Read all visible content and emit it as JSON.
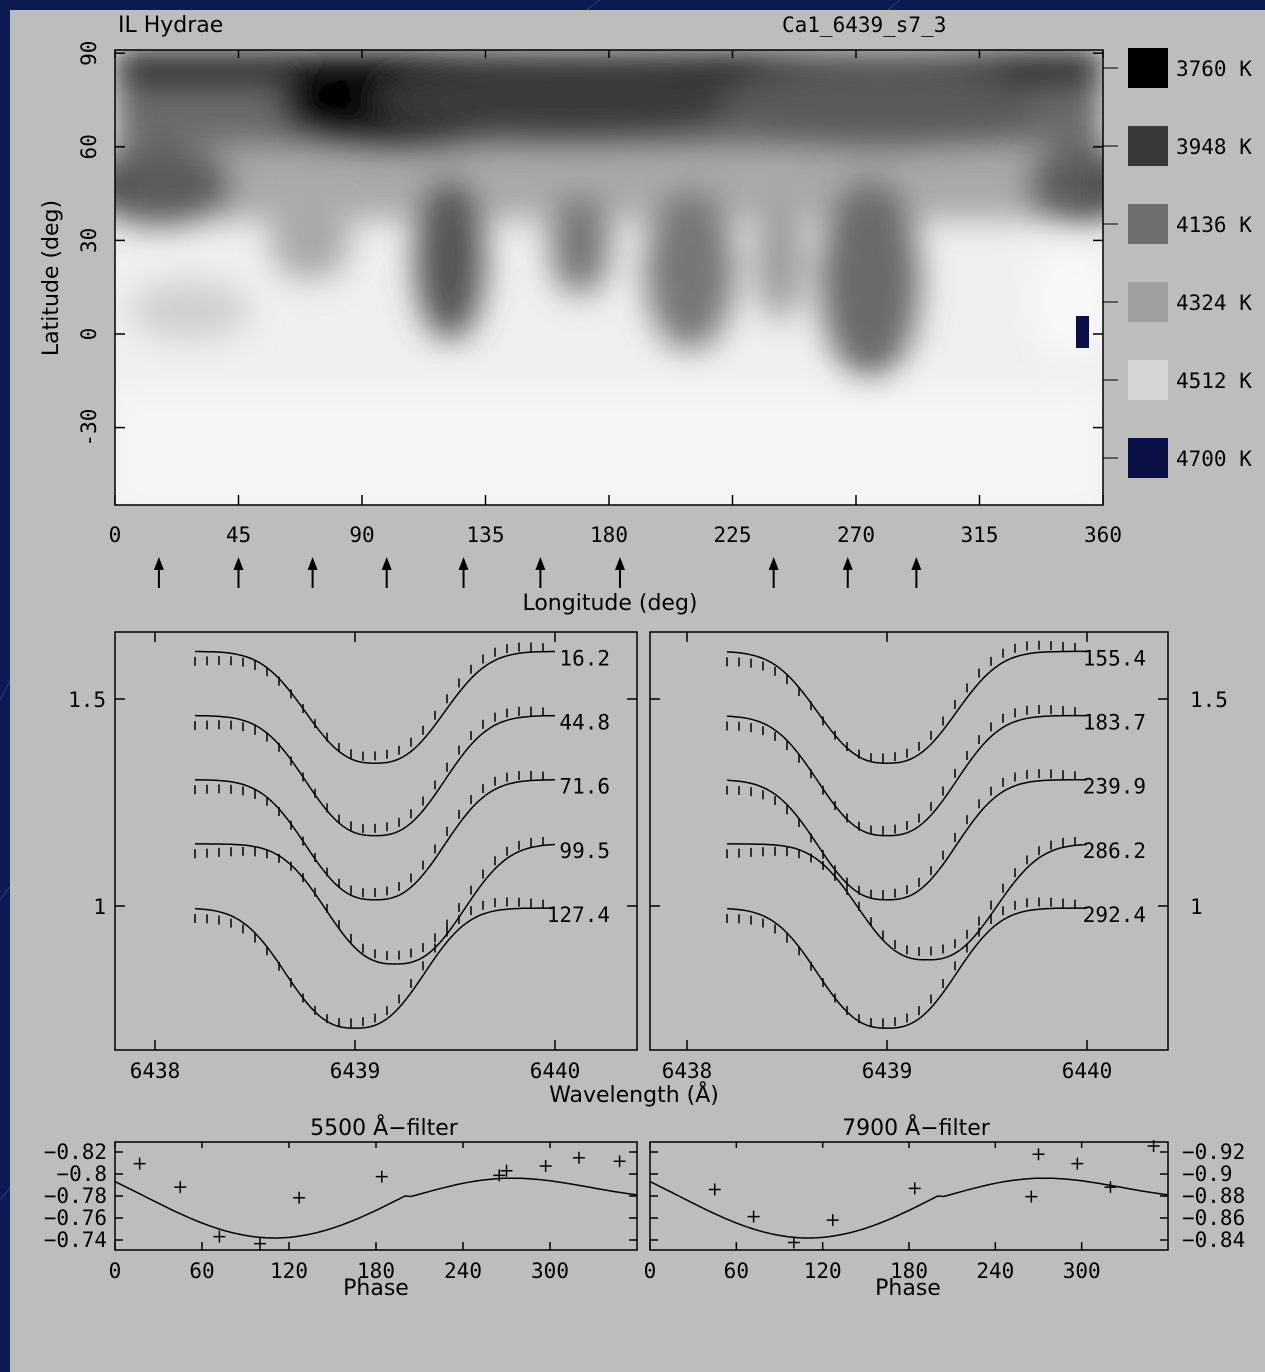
{
  "header": {
    "star": "IL Hydrae",
    "run": "Ca1_6439_s7_3"
  },
  "map": {
    "ylabel": "Latitude (deg)",
    "xlabel": "Longitude (deg)",
    "xticks": [
      "0",
      "45",
      "90",
      "135",
      "180",
      "225",
      "270",
      "315",
      "360"
    ],
    "yticks": [
      "90",
      "60",
      "30",
      "0",
      "-30"
    ],
    "phase_arrows_longitudes": [
      16,
      45,
      72,
      99,
      127,
      155,
      184,
      240,
      267,
      292
    ]
  },
  "legend": [
    {
      "label": "3760 K",
      "color": "#000000"
    },
    {
      "label": "3948 K",
      "color": "#383838"
    },
    {
      "label": "4136 K",
      "color": "#6e6e6e"
    },
    {
      "label": "4324 K",
      "color": "#a0a0a0"
    },
    {
      "label": "4512 K",
      "color": "#d6d6d6"
    },
    {
      "label": "4700 K",
      "color": "#0a0f45"
    }
  ],
  "profiles": {
    "xlabel": "Wavelength (Å)",
    "xticks": [
      "6438",
      "6439",
      "6440"
    ],
    "yticks": [
      "1.5",
      "1"
    ],
    "left_phases": [
      "16.2",
      "44.8",
      "71.6",
      "99.5",
      "127.4"
    ],
    "right_phases": [
      "155.4",
      "183.7",
      "239.9",
      "286.2",
      "292.4"
    ]
  },
  "light": {
    "title_left": "5500 Å−filter",
    "title_right": "7900 Å−filter",
    "xlabel": "Phase",
    "xticks": [
      "0",
      "60",
      "120",
      "180",
      "240",
      "300"
    ],
    "yticks_left": [
      "−0.82",
      "−0.8",
      "−0.78",
      "−0.76",
      "−0.74"
    ],
    "yticks_right": [
      "−0.92",
      "−0.9",
      "−0.88",
      "−0.86",
      "−0.84"
    ]
  },
  "chart_data": [
    {
      "type": "heatmap",
      "title": "IL Hydrae",
      "subtitle": "Ca1_6439_s7_3",
      "xlabel": "Longitude (deg)",
      "ylabel": "Latitude (deg)",
      "xlim": [
        0,
        360
      ],
      "ylim": [
        -55,
        90
      ],
      "spots": [
        {
          "lon": 100,
          "lat": 78,
          "temp_K": 3760
        },
        {
          "lon": 10,
          "lat": 45,
          "temp_K": 3948
        },
        {
          "lon": 125,
          "lat": 20,
          "temp_K": 4136
        },
        {
          "lon": 260,
          "lat": 20,
          "temp_K": 4136
        },
        {
          "lon": 350,
          "lat": 45,
          "temp_K": 3948
        }
      ],
      "legend": [
        "3760 K",
        "3948 K",
        "4136 K",
        "4324 K",
        "4512 K",
        "4700 K"
      ]
    },
    {
      "type": "line",
      "xlabel": "Wavelength (Å)",
      "xlim": [
        6438,
        6440.6
      ],
      "series": [
        {
          "name": "16.2",
          "continuum": 1.615,
          "depth": 0.27,
          "center": 6439.1
        },
        {
          "name": "44.8",
          "continuum": 1.46,
          "depth": 0.29,
          "center": 6439.1
        },
        {
          "name": "71.6",
          "continuum": 1.305,
          "depth": 0.29,
          "center": 6439.1
        },
        {
          "name": "99.5",
          "continuum": 1.15,
          "depth": 0.29,
          "center": 6439.2
        },
        {
          "name": "127.4",
          "continuum": 0.995,
          "depth": 0.29,
          "center": 6439.0
        }
      ]
    },
    {
      "type": "line",
      "xlabel": "Wavelength (Å)",
      "xlim": [
        6438,
        6440.6
      ],
      "series": [
        {
          "name": "155.4",
          "continuum": 1.615,
          "depth": 0.27,
          "center": 6439.0
        },
        {
          "name": "183.7",
          "continuum": 1.46,
          "depth": 0.29,
          "center": 6439.0
        },
        {
          "name": "239.9",
          "continuum": 1.305,
          "depth": 0.29,
          "center": 6439.0
        },
        {
          "name": "286.2",
          "continuum": 1.15,
          "depth": 0.28,
          "center": 6439.2
        },
        {
          "name": "292.4",
          "continuum": 0.995,
          "depth": 0.29,
          "center": 6439.0
        }
      ]
    },
    {
      "type": "scatter",
      "title": "5500 Å−filter",
      "xlabel": "Phase",
      "xlim": [
        0,
        360
      ],
      "ylim": [
        -0.82,
        -0.735
      ],
      "x": [
        17,
        45,
        72,
        100,
        127,
        184,
        265,
        270,
        297,
        320,
        348
      ],
      "y": [
        -0.805,
        -0.785,
        -0.743,
        -0.737,
        -0.776,
        -0.794,
        -0.795,
        -0.799,
        -0.803,
        -0.81,
        -0.807
      ]
    },
    {
      "type": "scatter",
      "title": "7900 Å−filter",
      "xlabel": "Phase",
      "xlim": [
        0,
        360
      ],
      "ylim": [
        -0.92,
        -0.835
      ],
      "x": [
        45,
        72,
        100,
        127,
        184,
        265,
        270,
        297,
        320,
        350
      ],
      "y": [
        -0.883,
        -0.86,
        -0.838,
        -0.857,
        -0.884,
        -0.877,
        -0.913,
        -0.905,
        -0.885,
        -0.92
      ]
    }
  ]
}
